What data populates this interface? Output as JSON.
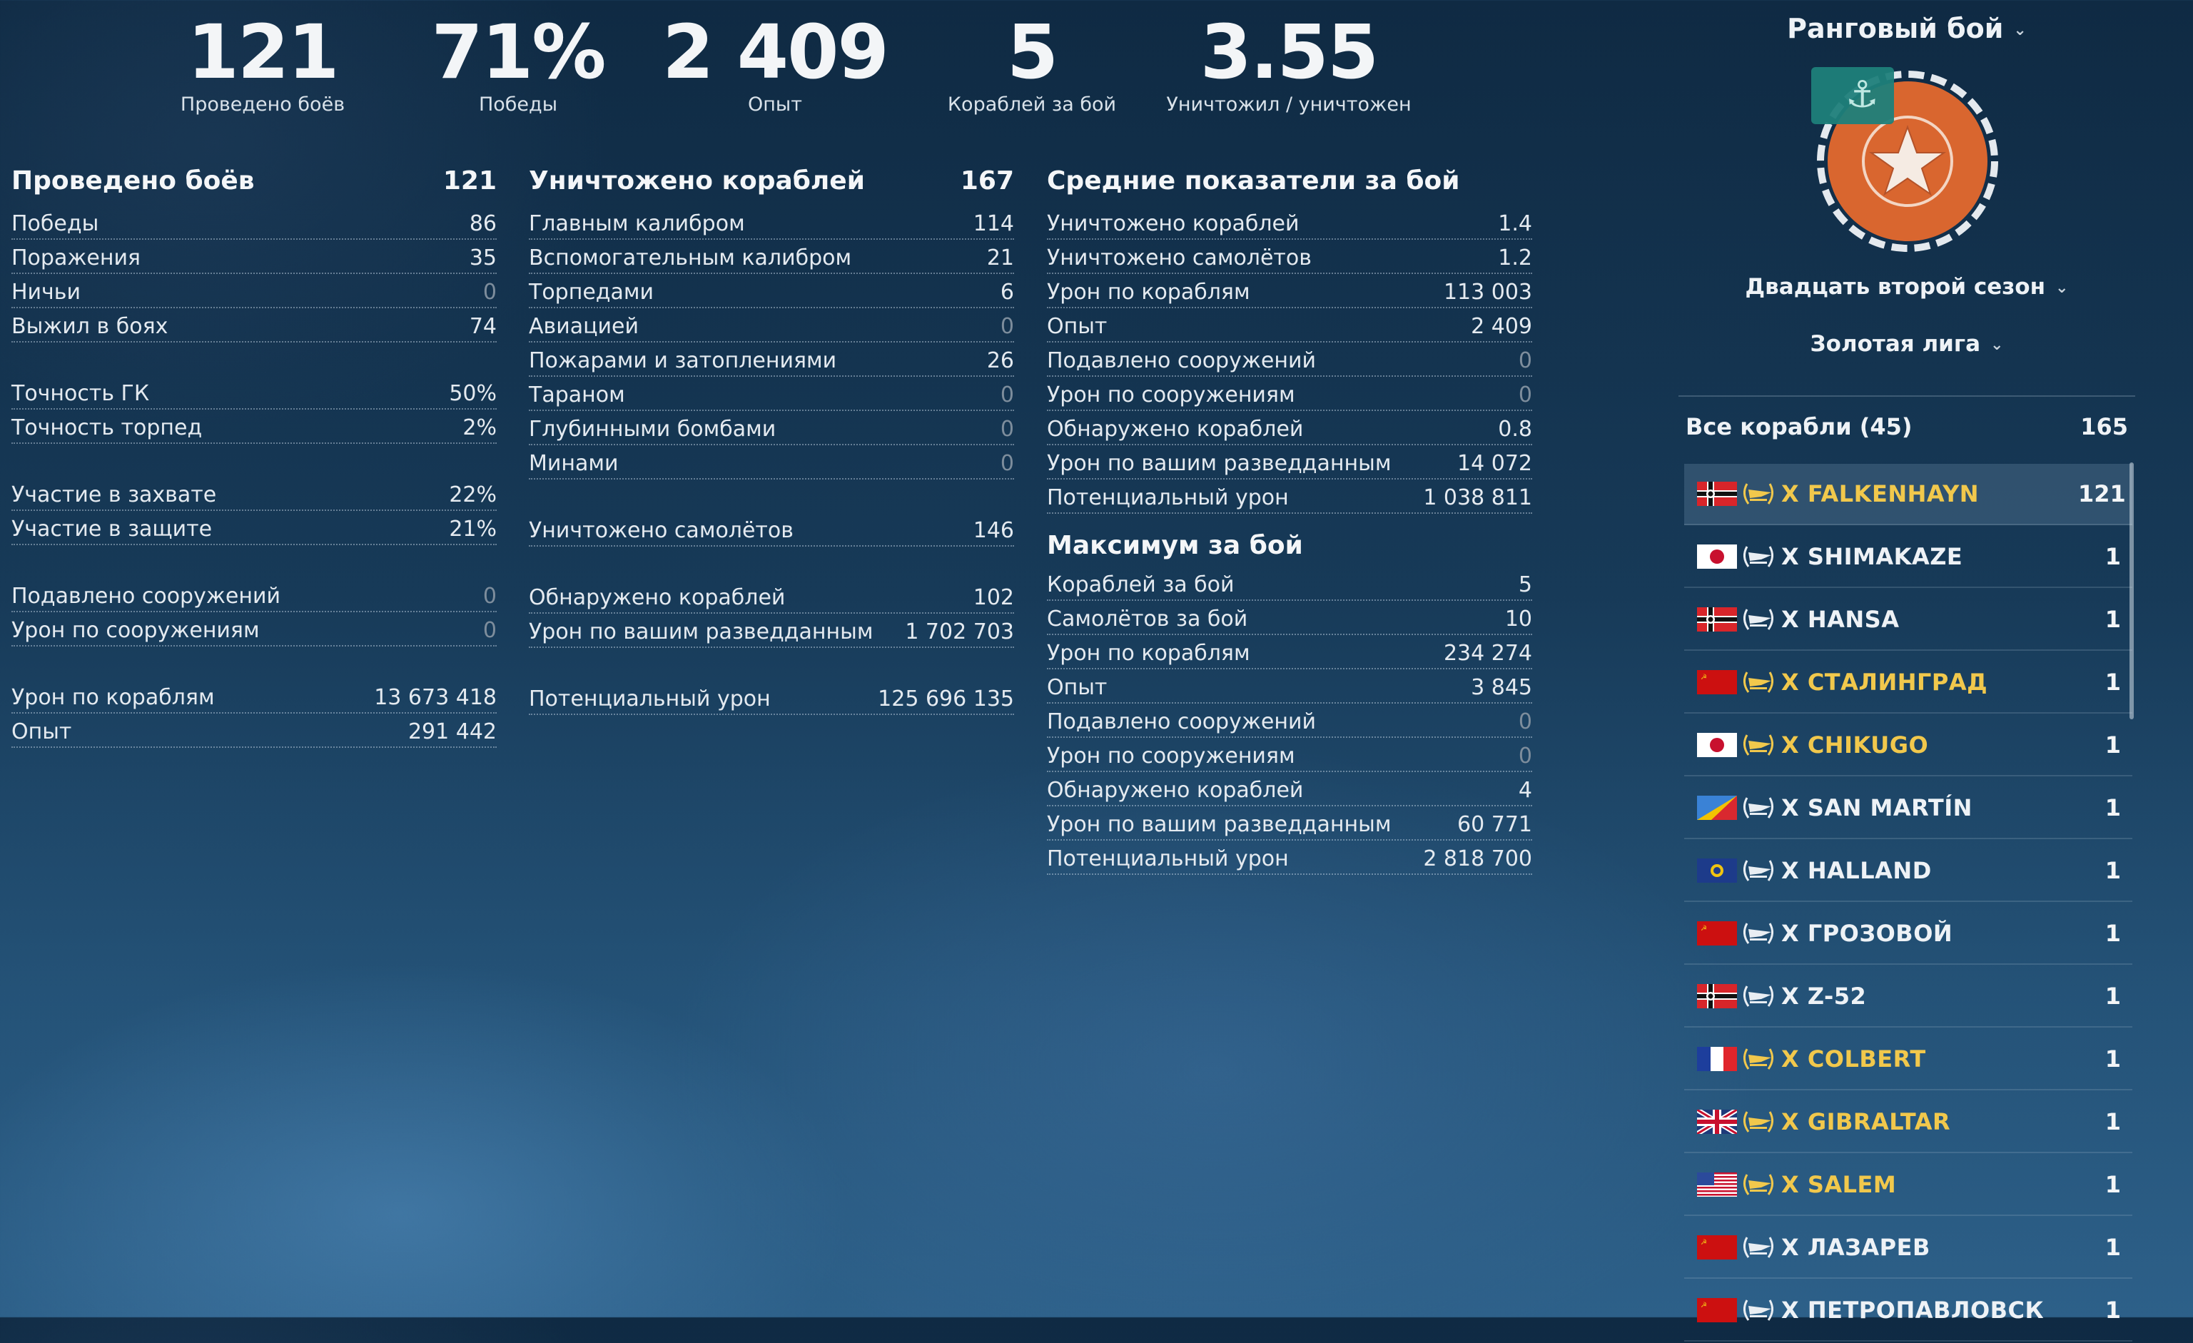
{
  "summary": [
    {
      "value": "121",
      "label": "Проведено боёв"
    },
    {
      "value": "71%",
      "label": "Победы"
    },
    {
      "value": "2 409",
      "label": "Опыт"
    },
    {
      "value": "5",
      "label": "Кораблей за бой"
    },
    {
      "value": "3.55",
      "label": "Уничтожил / уничтожен"
    }
  ],
  "col1": {
    "title": "Проведено боёв",
    "title_value": "121",
    "rows": [
      {
        "label": "Победы",
        "value": "86"
      },
      {
        "label": "Поражения",
        "value": "35"
      },
      {
        "label": "Ничьи",
        "value": "0"
      },
      {
        "label": "Выжил в боях",
        "value": "74"
      },
      {
        "label": "Точность ГК",
        "value": "50%"
      },
      {
        "label": "Точность торпед",
        "value": "2%"
      },
      {
        "label": "Участие в захвате",
        "value": "22%"
      },
      {
        "label": "Участие в защите",
        "value": "21%"
      },
      {
        "label": "Подавлено сооружений",
        "value": "0"
      },
      {
        "label": "Урон по сооружениям",
        "value": "0"
      },
      {
        "label": "Урон по кораблям",
        "value": "13 673 418"
      },
      {
        "label": "Опыт",
        "value": "291 442"
      }
    ]
  },
  "col2": {
    "title": "Уничтожено кораблей",
    "title_value": "167",
    "rows": [
      {
        "label": "Главным калибром",
        "value": "114"
      },
      {
        "label": "Вспомогательным калибром",
        "value": "21"
      },
      {
        "label": "Торпедами",
        "value": "6"
      },
      {
        "label": "Авиацией",
        "value": "0"
      },
      {
        "label": "Пожарами и затоплениями",
        "value": "26"
      },
      {
        "label": "Тараном",
        "value": "0"
      },
      {
        "label": "Глубинными бомбами",
        "value": "0"
      },
      {
        "label": "Минами",
        "value": "0"
      },
      {
        "label": "Уничтожено самолётов",
        "value": "146"
      },
      {
        "label": "Обнаружено кораблей",
        "value": "102"
      },
      {
        "label": "Урон по вашим разведданным",
        "value": "1 702 703"
      },
      {
        "label": "Потенциальный урон",
        "value": "125 696 135"
      }
    ]
  },
  "col3": {
    "title": "Средние показатели за бой",
    "rows": [
      {
        "label": "Уничтожено кораблей",
        "value": "1.4"
      },
      {
        "label": "Уничтожено самолётов",
        "value": "1.2"
      },
      {
        "label": "Урон по кораблям",
        "value": "113 003"
      },
      {
        "label": "Опыт",
        "value": "2 409"
      },
      {
        "label": "Подавлено сооружений",
        "value": "0"
      },
      {
        "label": "Урон по сооружениям",
        "value": "0"
      },
      {
        "label": "Обнаружено кораблей",
        "value": "0.8"
      },
      {
        "label": "Урон по вашим разведданным",
        "value": "14 072"
      },
      {
        "label": "Потенциальный урон",
        "value": "1 038 811"
      }
    ],
    "max_title": "Максимум за бой",
    "max_rows": [
      {
        "label": "Кораблей за бой",
        "value": "5"
      },
      {
        "label": "Самолётов за бой",
        "value": "10"
      },
      {
        "label": "Урон по кораблям",
        "value": "234 274"
      },
      {
        "label": "Опыт",
        "value": "3 845"
      },
      {
        "label": "Подавлено сооружений",
        "value": "0"
      },
      {
        "label": "Урон по сооружениям",
        "value": "0"
      },
      {
        "label": "Обнаружено кораблей",
        "value": "4"
      },
      {
        "label": "Урон по вашим разведданным",
        "value": "60 771"
      },
      {
        "label": "Потенциальный урон",
        "value": "2 818 700"
      }
    ]
  },
  "right": {
    "mode": "Ранговый бой",
    "season": "Двадцать второй сезон",
    "league": "Золотая лига",
    "ships_header": "Все корабли (45)",
    "ships_total": "165",
    "emblem_color": "#d9662f",
    "ships": [
      {
        "flag": "germany",
        "name": "X FALKENHAYN",
        "count": "121",
        "gold": true,
        "selected": true
      },
      {
        "flag": "japan",
        "name": "X SHIMAKAZE",
        "count": "1",
        "gold": false
      },
      {
        "flag": "germany",
        "name": "X HANSA",
        "count": "1",
        "gold": false
      },
      {
        "flag": "ussr",
        "name": "X СТАЛИНГРАД",
        "count": "1",
        "gold": true
      },
      {
        "flag": "japan",
        "name": "X CHIKUGO",
        "count": "1",
        "gold": true
      },
      {
        "flag": "panamerica",
        "name": "X SAN MARTÍN",
        "count": "1",
        "gold": false
      },
      {
        "flag": "europe",
        "name": "X HALLAND",
        "count": "1",
        "gold": false
      },
      {
        "flag": "ussr",
        "name": "X ГРОЗОВОЙ",
        "count": "1",
        "gold": false
      },
      {
        "flag": "germany",
        "name": "X Z-52",
        "count": "1",
        "gold": false
      },
      {
        "flag": "france",
        "name": "X COLBERT",
        "count": "1",
        "gold": true
      },
      {
        "flag": "uk",
        "name": "X GIBRALTAR",
        "count": "1",
        "gold": true
      },
      {
        "flag": "usa",
        "name": "X SALEM",
        "count": "1",
        "gold": true
      },
      {
        "flag": "ussr",
        "name": "X ЛАЗАРЕВ",
        "count": "1",
        "gold": false
      },
      {
        "flag": "ussr",
        "name": "X ПЕТРОПАВЛОВСК",
        "count": "1",
        "gold": false
      }
    ]
  }
}
